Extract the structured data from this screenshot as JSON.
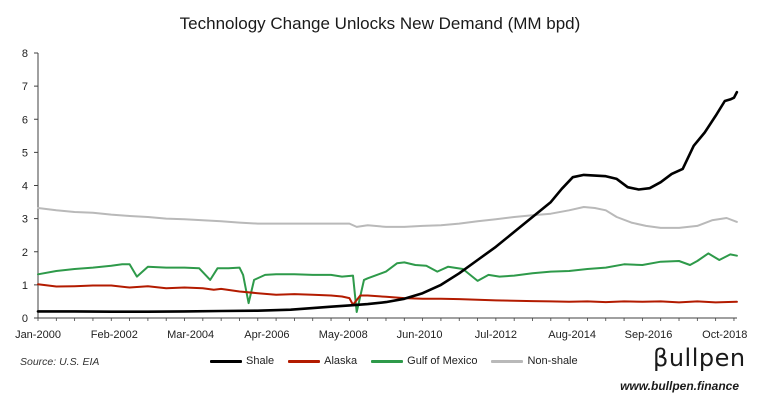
{
  "page": {
    "title": "Technology Change Unlocks New Demand (MM bpd)",
    "source": "Source: U.S. EIA",
    "brand": "βullpen",
    "website": "www.bullpen.finance"
  },
  "colors": {
    "Shale": "#000000",
    "Alaska": "#b31b00",
    "Gulf of Mexico": "#2e9a4a",
    "Non-shale": "#b9b9b9",
    "axis": "#404040",
    "tick_text": "#222222"
  },
  "chart_data": {
    "type": "line",
    "title": "Technology Change Unlocks New Demand (MM bpd)",
    "xlabel": "",
    "ylabel": "",
    "ylim": [
      0,
      8
    ],
    "yticks": [
      0,
      1,
      2,
      3,
      4,
      5,
      6,
      7,
      8
    ],
    "xlim": [
      2000.0,
      2019.083
    ],
    "xtick_labels": [
      "Jan-2000",
      "Feb-2002",
      "Mar-2004",
      "Apr-2006",
      "May-2008",
      "Jun-2010",
      "Jul-2012",
      "Aug-2014",
      "Sep-2016",
      "Oct-2018"
    ],
    "xtick_values": [
      2000.0,
      2002.083,
      2004.167,
      2006.25,
      2008.333,
      2010.417,
      2012.5,
      2014.583,
      2016.667,
      2018.75
    ],
    "grid": false,
    "legend": "bottom",
    "series": [
      {
        "name": "Shale",
        "x": [
          2000.0,
          2001.0,
          2002.0,
          2003.0,
          2004.0,
          2005.0,
          2006.0,
          2006.9,
          2007.5,
          2008.0,
          2008.5,
          2009.0,
          2009.5,
          2010.0,
          2010.5,
          2011.0,
          2011.5,
          2012.0,
          2012.5,
          2013.0,
          2013.5,
          2014.0,
          2014.3,
          2014.6,
          2014.9,
          2015.2,
          2015.5,
          2015.8,
          2016.1,
          2016.4,
          2016.7,
          2017.0,
          2017.3,
          2017.6,
          2017.9,
          2018.2,
          2018.5,
          2018.75,
          2018.9,
          2019.0,
          2019.08
        ],
        "y": [
          0.2,
          0.2,
          0.19,
          0.19,
          0.2,
          0.21,
          0.22,
          0.25,
          0.3,
          0.34,
          0.38,
          0.42,
          0.48,
          0.58,
          0.75,
          1.0,
          1.35,
          1.75,
          2.15,
          2.6,
          3.05,
          3.5,
          3.9,
          4.25,
          4.32,
          4.3,
          4.28,
          4.2,
          3.95,
          3.88,
          3.92,
          4.1,
          4.35,
          4.5,
          5.2,
          5.6,
          6.1,
          6.55,
          6.6,
          6.65,
          6.82
        ]
      },
      {
        "name": "Alaska",
        "x": [
          2000.0,
          2000.5,
          2001.0,
          2001.5,
          2002.0,
          2002.5,
          2003.0,
          2003.5,
          2004.0,
          2004.5,
          2004.8,
          2005.0,
          2005.5,
          2006.0,
          2006.5,
          2007.0,
          2007.5,
          2008.0,
          2008.3,
          2008.5,
          2008.6,
          2008.8,
          2009.0,
          2009.5,
          2010.0,
          2010.5,
          2011.0,
          2011.5,
          2012.0,
          2012.5,
          2013.0,
          2013.5,
          2014.0,
          2014.5,
          2015.0,
          2015.5,
          2016.0,
          2016.5,
          2017.0,
          2017.5,
          2018.0,
          2018.5,
          2019.08
        ],
        "y": [
          1.02,
          0.95,
          0.96,
          0.98,
          0.98,
          0.92,
          0.96,
          0.9,
          0.92,
          0.9,
          0.85,
          0.88,
          0.8,
          0.75,
          0.7,
          0.72,
          0.7,
          0.68,
          0.65,
          0.6,
          0.4,
          0.68,
          0.68,
          0.64,
          0.6,
          0.58,
          0.58,
          0.57,
          0.55,
          0.53,
          0.52,
          0.51,
          0.5,
          0.49,
          0.5,
          0.48,
          0.5,
          0.49,
          0.5,
          0.47,
          0.5,
          0.47,
          0.49
        ]
      },
      {
        "name": "Gulf of Mexico",
        "x": [
          2000.0,
          2000.5,
          2001.0,
          2001.5,
          2002.0,
          2002.3,
          2002.5,
          2002.7,
          2003.0,
          2003.5,
          2004.0,
          2004.4,
          2004.7,
          2004.9,
          2005.2,
          2005.5,
          2005.6,
          2005.75,
          2005.9,
          2006.2,
          2006.5,
          2007.0,
          2007.5,
          2008.0,
          2008.3,
          2008.6,
          2008.7,
          2008.9,
          2009.0,
          2009.5,
          2009.8,
          2010.0,
          2010.3,
          2010.6,
          2010.9,
          2011.2,
          2011.6,
          2012.0,
          2012.3,
          2012.6,
          2013.0,
          2013.5,
          2014.0,
          2014.5,
          2015.0,
          2015.5,
          2016.0,
          2016.5,
          2017.0,
          2017.5,
          2017.8,
          2018.0,
          2018.3,
          2018.6,
          2018.9,
          2019.08
        ],
        "y": [
          1.32,
          1.42,
          1.48,
          1.52,
          1.58,
          1.62,
          1.62,
          1.25,
          1.55,
          1.52,
          1.52,
          1.5,
          1.15,
          1.5,
          1.5,
          1.52,
          1.3,
          0.45,
          1.15,
          1.3,
          1.32,
          1.32,
          1.3,
          1.3,
          1.25,
          1.28,
          0.18,
          1.15,
          1.2,
          1.4,
          1.65,
          1.68,
          1.6,
          1.58,
          1.4,
          1.55,
          1.48,
          1.12,
          1.3,
          1.25,
          1.28,
          1.35,
          1.4,
          1.42,
          1.48,
          1.52,
          1.62,
          1.6,
          1.7,
          1.72,
          1.6,
          1.72,
          1.95,
          1.75,
          1.92,
          1.88
        ]
      },
      {
        "name": "Non-shale",
        "x": [
          2000.0,
          2000.5,
          2001.0,
          2001.5,
          2002.0,
          2002.5,
          2003.0,
          2003.5,
          2004.0,
          2004.5,
          2005.0,
          2005.5,
          2006.0,
          2006.5,
          2007.0,
          2007.5,
          2008.0,
          2008.5,
          2008.7,
          2009.0,
          2009.5,
          2010.0,
          2010.5,
          2011.0,
          2011.5,
          2012.0,
          2012.5,
          2013.0,
          2013.5,
          2014.0,
          2014.5,
          2014.9,
          2015.2,
          2015.5,
          2015.8,
          2016.2,
          2016.6,
          2017.0,
          2017.5,
          2018.0,
          2018.4,
          2018.8,
          2019.08
        ],
        "y": [
          3.32,
          3.25,
          3.2,
          3.18,
          3.12,
          3.08,
          3.05,
          3.0,
          2.98,
          2.95,
          2.92,
          2.88,
          2.85,
          2.85,
          2.85,
          2.85,
          2.85,
          2.85,
          2.75,
          2.8,
          2.75,
          2.75,
          2.78,
          2.8,
          2.85,
          2.92,
          2.98,
          3.05,
          3.1,
          3.15,
          3.25,
          3.35,
          3.32,
          3.25,
          3.05,
          2.88,
          2.78,
          2.72,
          2.72,
          2.78,
          2.95,
          3.02,
          2.9
        ]
      }
    ]
  }
}
